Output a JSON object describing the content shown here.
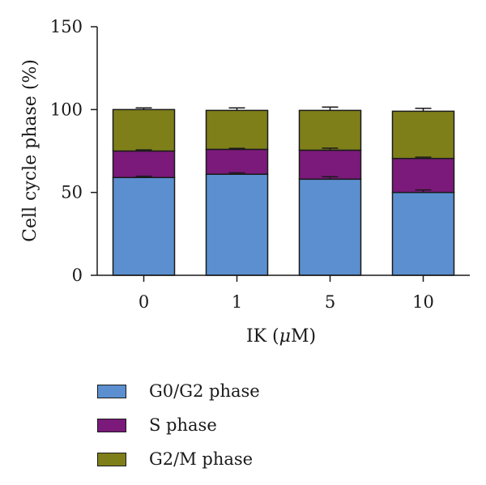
{
  "chart_data": {
    "type": "bar",
    "stacked": true,
    "categories": [
      "0",
      "1",
      "5",
      "10"
    ],
    "series": [
      {
        "name": "G0/G2 phase",
        "color": "#5b8fcf",
        "values": [
          59,
          61,
          58,
          50
        ],
        "errors": [
          0.8,
          0.8,
          1.5,
          1.5
        ]
      },
      {
        "name": "S phase",
        "color": "#7b1a7b",
        "values": [
          16,
          15,
          17.5,
          20.5
        ],
        "errors": [
          0.7,
          0.6,
          1.2,
          0.8
        ]
      },
      {
        "name": "G2/M phase",
        "color": "#7f7f1a",
        "values": [
          25,
          23.5,
          24,
          28.5
        ],
        "errors": [
          1.0,
          1.5,
          2.0,
          1.8
        ]
      }
    ],
    "xlabel": "IK (",
    "xlabel_mu": "μ",
    "xlabel_end": "M)",
    "ylabel": "Cell cycle phase (%)",
    "ylim": [
      0,
      150
    ],
    "yticks": [
      "0",
      "50",
      "100",
      "150"
    ],
    "grid": false,
    "legend_position": "bottom-left"
  }
}
